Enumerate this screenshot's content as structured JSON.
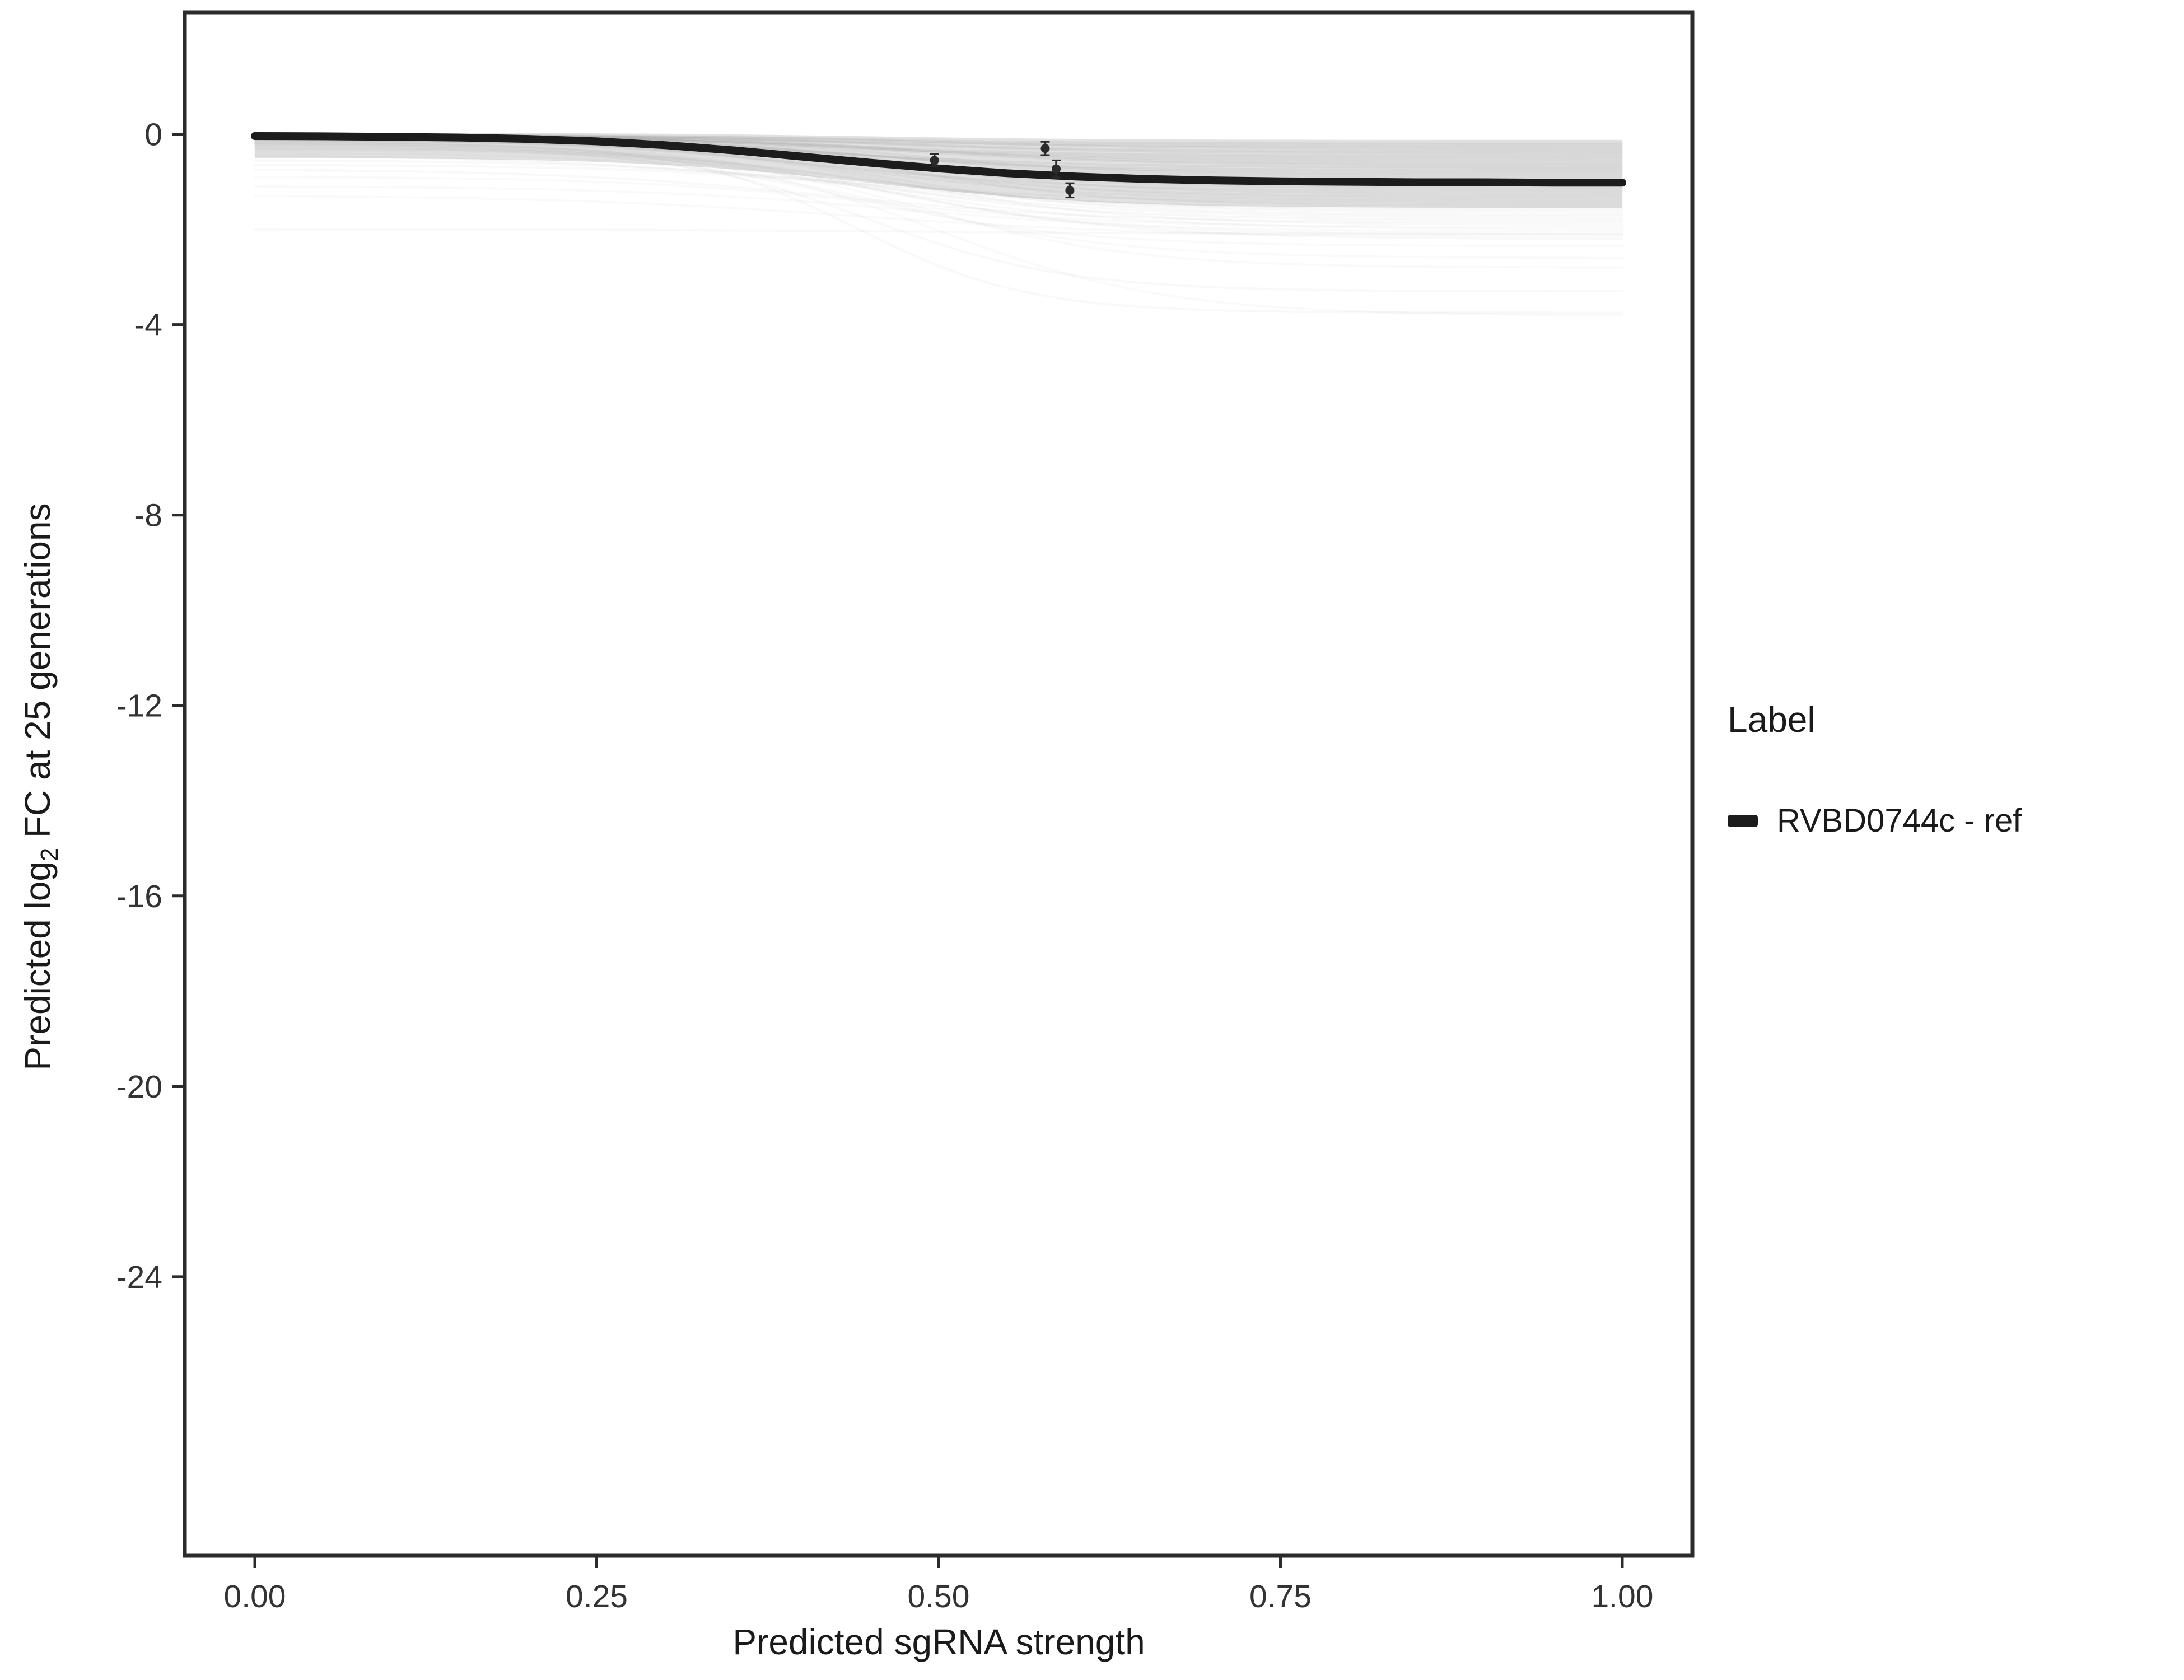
{
  "chart_data": {
    "type": "line",
    "title": "",
    "xlabel": "Predicted sgRNA strength",
    "ylabel": "Predicted log2 FC at 25 generations",
    "ylabel_pre": "Predicted  log",
    "ylabel_sub": "2",
    "ylabel_post": " FC at 25 generations",
    "xlim": [
      -0.0512,
      1.0512
    ],
    "ylim": [
      -29.86,
      2.56
    ],
    "grid": false,
    "axis_color": "#2b2b2b",
    "tick_label_color": "#333333",
    "x_ticks": {
      "values": [
        0,
        0.25,
        0.5,
        0.75,
        1.0
      ],
      "labels": [
        "0.00",
        "0.25",
        "0.50",
        "0.75",
        "1.00"
      ]
    },
    "y_ticks": {
      "values": [
        0,
        -4,
        -8,
        -12,
        -16,
        -20,
        -24
      ],
      "labels": [
        "0",
        "-4",
        "-8",
        "-12",
        "-16",
        "-20",
        "-24"
      ]
    },
    "legend": {
      "title": "Label",
      "position": "right",
      "entries": [
        {
          "label": "RVBD0744c - ref",
          "color": "#1c1c1c"
        }
      ]
    },
    "series": [
      {
        "name": "RVBD0744c - ref",
        "role": "reference",
        "color": "#1c1c1c",
        "width": 14,
        "x": [
          0,
          0.05,
          0.1,
          0.15,
          0.2,
          0.25,
          0.3,
          0.35,
          0.4,
          0.45,
          0.5,
          0.55,
          0.6,
          0.65,
          0.7,
          0.75,
          0.8,
          0.85,
          0.9,
          0.95,
          1.0
        ],
        "y": [
          -0.04,
          -0.045,
          -0.055,
          -0.07,
          -0.1,
          -0.15,
          -0.23,
          -0.34,
          -0.47,
          -0.6,
          -0.72,
          -0.82,
          -0.89,
          -0.94,
          -0.97,
          -0.99,
          -1.0,
          -1.01,
          -1.01,
          -1.02,
          -1.02
        ]
      }
    ],
    "points": [
      {
        "x": 0.497,
        "y": -0.55,
        "err": 0.13
      },
      {
        "x": 0.578,
        "y": -0.3,
        "err": 0.14
      },
      {
        "x": 0.586,
        "y": -0.73,
        "err": 0.18
      },
      {
        "x": 0.596,
        "y": -1.18,
        "err": 0.15
      }
    ],
    "point_color": "#2a2a2a",
    "background_band": {
      "color": "#777777",
      "opacity": 0.22,
      "top_start": 0.03,
      "top_end": -0.12,
      "bottom_start": -0.5,
      "bottom_end": -1.55,
      "mid": 0.45,
      "k": 12
    },
    "background_lines": {
      "color": "#8a8a8a",
      "width": 4,
      "params": [
        [
          -0.02,
          -0.35,
          0.45,
          12,
          0.1
        ],
        [
          -0.03,
          -0.5,
          0.42,
          11,
          0.1
        ],
        [
          -0.05,
          -0.6,
          0.48,
          13,
          0.09
        ],
        [
          -0.04,
          -0.7,
          0.4,
          10,
          0.1
        ],
        [
          -0.06,
          -0.8,
          0.44,
          12,
          0.09
        ],
        [
          -0.03,
          -0.9,
          0.46,
          12,
          0.08
        ],
        [
          -0.08,
          -1.0,
          0.43,
          11,
          0.09
        ],
        [
          -0.05,
          -1.1,
          0.47,
          13,
          0.08
        ],
        [
          -0.1,
          -1.2,
          0.41,
          10,
          0.08
        ],
        [
          -0.07,
          -1.3,
          0.45,
          12,
          0.07
        ],
        [
          -0.12,
          -1.4,
          0.44,
          11,
          0.07
        ],
        [
          -0.09,
          -1.5,
          0.48,
          13,
          0.07
        ],
        [
          -0.15,
          -1.6,
          0.42,
          10,
          0.06
        ],
        [
          -0.11,
          -1.7,
          0.46,
          12,
          0.06
        ],
        [
          -0.18,
          -1.8,
          0.43,
          11,
          0.06
        ],
        [
          -0.14,
          -1.9,
          0.47,
          12,
          0.05
        ],
        [
          -0.2,
          -2.0,
          0.44,
          10,
          0.05
        ],
        [
          -0.16,
          -2.1,
          0.45,
          12,
          0.05
        ],
        [
          -0.22,
          -2.2,
          0.46,
          11,
          0.05
        ],
        [
          -0.25,
          -2.35,
          0.43,
          12,
          0.04
        ],
        [
          -2.0,
          -2.1,
          0.5,
          8,
          0.05
        ],
        [
          -0.3,
          -3.3,
          0.45,
          14,
          0.05
        ],
        [
          -0.2,
          -3.75,
          0.44,
          16,
          0.05
        ],
        [
          -0.25,
          -3.8,
          0.5,
          12,
          0.04
        ],
        [
          -0.4,
          -2.6,
          0.47,
          12,
          0.04
        ],
        [
          -0.35,
          -2.8,
          0.49,
          13,
          0.04
        ],
        [
          -0.02,
          -0.25,
          0.4,
          10,
          0.12
        ],
        [
          -0.03,
          -0.3,
          0.5,
          12,
          0.12
        ],
        [
          -0.02,
          -0.4,
          0.46,
          11,
          0.11
        ],
        [
          -0.04,
          -0.45,
          0.43,
          12,
          0.11
        ],
        [
          -0.03,
          -0.55,
          0.45,
          12,
          0.1
        ],
        [
          -0.05,
          -0.65,
          0.47,
          11,
          0.1
        ],
        [
          -0.04,
          -0.75,
          0.42,
          12,
          0.09
        ],
        [
          -0.06,
          -0.85,
          0.48,
          13,
          0.09
        ],
        [
          -0.05,
          -0.95,
          0.44,
          11,
          0.08
        ],
        [
          -0.07,
          -1.05,
          0.46,
          12,
          0.08
        ],
        [
          -0.08,
          -1.15,
          0.43,
          10,
          0.07
        ],
        [
          -0.1,
          -1.25,
          0.47,
          12,
          0.07
        ],
        [
          -0.12,
          -1.35,
          0.45,
          11,
          0.06
        ],
        [
          -0.3,
          -1.55,
          0.44,
          12,
          0.06
        ],
        [
          -0.45,
          -1.45,
          0.4,
          9,
          0.06
        ],
        [
          -0.55,
          -1.65,
          0.46,
          10,
          0.05
        ],
        [
          -0.65,
          -1.75,
          0.48,
          11,
          0.05
        ],
        [
          -0.75,
          -1.85,
          0.42,
          10,
          0.05
        ],
        [
          -0.9,
          -1.95,
          0.45,
          11,
          0.04
        ],
        [
          -1.1,
          -2.05,
          0.47,
          10,
          0.04
        ],
        [
          -1.3,
          -2.15,
          0.44,
          9,
          0.04
        ],
        [
          -0.02,
          -0.2,
          0.45,
          12,
          0.13
        ]
      ]
    }
  }
}
